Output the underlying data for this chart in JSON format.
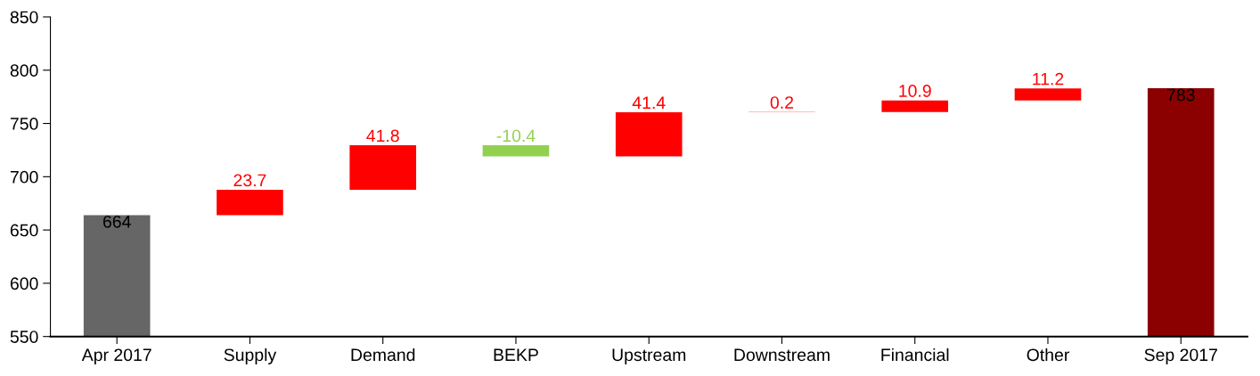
{
  "chart_data": {
    "type": "bar",
    "categories": [
      "Apr 2017",
      "Supply",
      "Demand",
      "BEKP",
      "Upstream",
      "Downstream",
      "Financial",
      "Other",
      "Sep 2017"
    ],
    "values": [
      664,
      23.7,
      41.8,
      -10.4,
      41.4,
      0.2,
      10.9,
      11.2,
      783
    ],
    "base": [
      0,
      664,
      687.7,
      729.5,
      719.1,
      760.5,
      760.7,
      771.6,
      0
    ],
    "colors": [
      "#666666",
      "#ff0000",
      "#ff0000",
      "#92d050",
      "#ff0000",
      "#ff0000",
      "#ff0000",
      "#ff0000",
      "#8b0000"
    ],
    "data_labels": true,
    "ylim": [
      550,
      850
    ],
    "yticks": [
      550,
      600,
      650,
      700,
      750,
      800,
      850
    ],
    "grid": false
  }
}
